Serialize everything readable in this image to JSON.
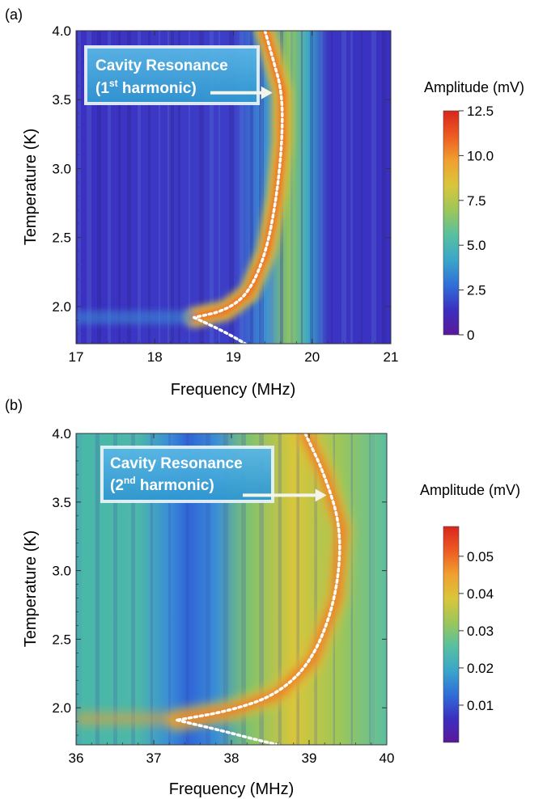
{
  "chart_data": [
    {
      "type": "heatmap",
      "panel_label": "(a)",
      "xlabel": "Frequency  (MHz)",
      "ylabel": "Temperature  (K)",
      "xlim": [
        17,
        21
      ],
      "ylim": [
        1.73,
        4.0
      ],
      "x_ticks": [
        "17",
        "18",
        "19",
        "20",
        "21"
      ],
      "y_ticks": [
        "2.0",
        "2.5",
        "3.0",
        "3.5",
        "4.0"
      ],
      "colorbar": {
        "title": "Amplitude  (mV)",
        "range": [
          0,
          12.5
        ],
        "ticks": [
          "0",
          "2.5",
          "5.0",
          "7.5",
          "10.0",
          "12.5"
        ]
      },
      "annotation": {
        "line1": "Cavity Resonance",
        "line2_pre": "(1",
        "line2_sup": "st",
        "line2_post": " harmonic)"
      },
      "resonance_curve_upper": [
        [
          19.4,
          4.0
        ],
        [
          19.5,
          3.8
        ],
        [
          19.62,
          3.55
        ],
        [
          19.62,
          3.2
        ],
        [
          19.55,
          2.8
        ],
        [
          19.42,
          2.4
        ],
        [
          19.2,
          2.1
        ],
        [
          18.9,
          1.97
        ],
        [
          18.5,
          1.92
        ]
      ],
      "resonance_curve_lower": [
        [
          18.5,
          1.92
        ],
        [
          18.8,
          1.84
        ],
        [
          19.0,
          1.78
        ],
        [
          19.15,
          1.73
        ]
      ],
      "arrow_target": [
        19.62,
        3.55
      ]
    },
    {
      "type": "heatmap",
      "panel_label": "(b)",
      "xlabel": "Frequency  (MHz)",
      "ylabel": "Temperature  (K)",
      "xlim": [
        36,
        40
      ],
      "ylim": [
        1.73,
        4.0
      ],
      "x_ticks": [
        "36",
        "37",
        "38",
        "39",
        "40"
      ],
      "y_ticks": [
        "2.0",
        "2.5",
        "3.0",
        "3.5",
        "4.0"
      ],
      "colorbar": {
        "title": "Amplitude  (mV)",
        "range": [
          0,
          0.058
        ],
        "ticks": [
          "0.01",
          "0.02",
          "0.03",
          "0.04",
          "0.05"
        ]
      },
      "annotation": {
        "line1": "Cavity Resonance",
        "line2_pre": "(2",
        "line2_sup": "nd",
        "line2_post": " harmonic)"
      },
      "resonance_curve_upper": [
        [
          38.95,
          4.0
        ],
        [
          39.2,
          3.7
        ],
        [
          39.42,
          3.3
        ],
        [
          39.35,
          2.8
        ],
        [
          39.05,
          2.35
        ],
        [
          38.6,
          2.1
        ],
        [
          38.0,
          1.98
        ],
        [
          37.3,
          1.91
        ]
      ],
      "resonance_curve_lower": [
        [
          37.3,
          1.91
        ],
        [
          37.9,
          1.83
        ],
        [
          38.3,
          1.77
        ],
        [
          38.6,
          1.73
        ]
      ],
      "arrow_target": [
        39.35,
        3.55
      ]
    }
  ],
  "colors": {
    "scale": [
      "#5a189a",
      "#3b2fc0",
      "#2f6fd8",
      "#3aa6c9",
      "#57c0a0",
      "#9cc65a",
      "#d9c63a",
      "#f0a030",
      "#ee5a22",
      "#d8261c"
    ],
    "label_box_fill": "#3ca6dc",
    "label_box_border": "#dfeef6",
    "curve": "#ffffff"
  }
}
